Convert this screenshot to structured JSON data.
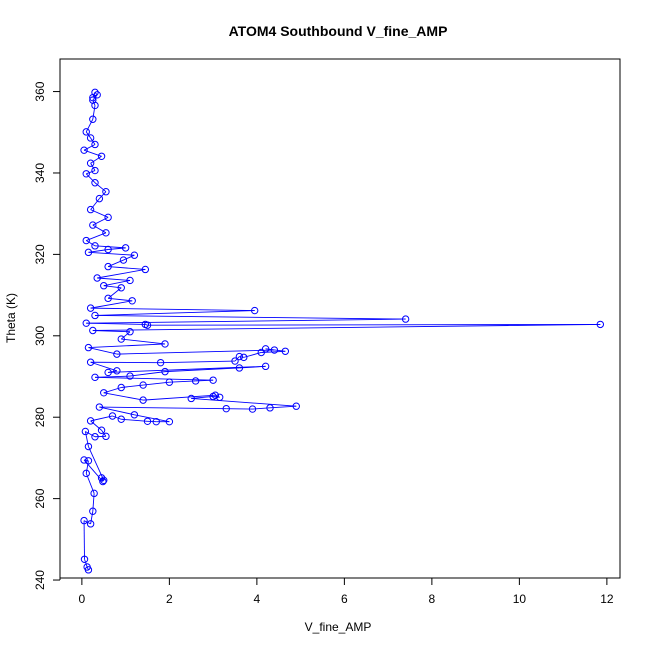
{
  "chart_data": {
    "type": "scatter",
    "title": "ATOM4 Southbound V_fine_AMP",
    "xlabel": "V_fine_AMP",
    "ylabel": "Theta (K)",
    "xlim": [
      -0.5,
      12.3
    ],
    "ylim": [
      240.5,
      368
    ],
    "x_ticks": [
      0,
      2,
      4,
      6,
      8,
      10,
      12
    ],
    "y_ticks": [
      240,
      260,
      280,
      300,
      320,
      340,
      360
    ],
    "marker": "open-circle",
    "connected": true,
    "series_color": "#0000ff",
    "grid": false,
    "legend": "none",
    "series": [
      {
        "points": [
          [
            0.15,
            242.5
          ],
          [
            0.12,
            243.2
          ],
          [
            0.06,
            245.1
          ],
          [
            0.05,
            254.6
          ],
          [
            0.2,
            253.8
          ],
          [
            0.25,
            256.9
          ],
          [
            0.28,
            261.3
          ],
          [
            0.1,
            266.2
          ],
          [
            0.15,
            269.3
          ],
          [
            0.05,
            269.5
          ],
          [
            0.48,
            264.2
          ],
          [
            0.45,
            265.1
          ],
          [
            0.5,
            264.5
          ],
          [
            0.15,
            272.8
          ],
          [
            0.08,
            276.5
          ],
          [
            0.3,
            275.2
          ],
          [
            0.55,
            275.3
          ],
          [
            0.45,
            276.8
          ],
          [
            0.2,
            279.1
          ],
          [
            0.7,
            280.3
          ],
          [
            0.9,
            279.5
          ],
          [
            1.5,
            279.0
          ],
          [
            1.7,
            278.9
          ],
          [
            2.0,
            278.9
          ],
          [
            1.2,
            280.6
          ],
          [
            0.4,
            282.5
          ],
          [
            3.3,
            282.1
          ],
          [
            3.9,
            282.0
          ],
          [
            4.3,
            282.3
          ],
          [
            4.9,
            282.7
          ],
          [
            2.5,
            284.6
          ],
          [
            3.0,
            285.1
          ],
          [
            3.15,
            284.9
          ],
          [
            3.05,
            285.4
          ],
          [
            1.4,
            284.2
          ],
          [
            0.5,
            286.0
          ],
          [
            0.9,
            287.3
          ],
          [
            1.4,
            287.9
          ],
          [
            2.0,
            288.6
          ],
          [
            2.6,
            288.9
          ],
          [
            3.0,
            289.1
          ],
          [
            0.3,
            289.8
          ],
          [
            1.1,
            290.1
          ],
          [
            1.9,
            291.2
          ],
          [
            3.6,
            292.1
          ],
          [
            4.2,
            292.5
          ],
          [
            0.6,
            291.0
          ],
          [
            0.8,
            291.4
          ],
          [
            0.2,
            293.5
          ],
          [
            1.8,
            293.4
          ],
          [
            3.5,
            293.8
          ],
          [
            3.6,
            294.9
          ],
          [
            3.7,
            294.7
          ],
          [
            4.1,
            295.9
          ],
          [
            4.65,
            296.2
          ],
          [
            4.2,
            296.8
          ],
          [
            4.4,
            296.5
          ],
          [
            0.8,
            295.5
          ],
          [
            0.15,
            297.1
          ],
          [
            1.9,
            298.0
          ],
          [
            0.9,
            299.2
          ],
          [
            1.1,
            301.0
          ],
          [
            0.25,
            301.3
          ],
          [
            11.85,
            302.8
          ],
          [
            1.5,
            302.6
          ],
          [
            1.45,
            302.8
          ],
          [
            0.1,
            303.1
          ],
          [
            7.4,
            304.1
          ],
          [
            0.3,
            305.0
          ],
          [
            3.95,
            306.2
          ],
          [
            0.2,
            306.8
          ],
          [
            1.15,
            308.6
          ],
          [
            0.6,
            309.2
          ],
          [
            0.9,
            311.8
          ],
          [
            0.5,
            312.3
          ],
          [
            1.1,
            313.6
          ],
          [
            0.35,
            314.2
          ],
          [
            1.45,
            316.3
          ],
          [
            0.6,
            317.0
          ],
          [
            0.95,
            318.6
          ],
          [
            1.2,
            319.8
          ],
          [
            0.15,
            320.5
          ],
          [
            0.6,
            321.2
          ],
          [
            1.0,
            321.6
          ],
          [
            0.3,
            322.1
          ],
          [
            0.1,
            323.4
          ],
          [
            0.55,
            325.3
          ],
          [
            0.25,
            327.2
          ],
          [
            0.6,
            329.1
          ],
          [
            0.2,
            331.0
          ],
          [
            0.4,
            333.7
          ],
          [
            0.55,
            335.4
          ],
          [
            0.3,
            337.6
          ],
          [
            0.1,
            339.8
          ],
          [
            0.3,
            340.6
          ],
          [
            0.2,
            342.4
          ],
          [
            0.45,
            344.1
          ],
          [
            0.05,
            345.6
          ],
          [
            0.3,
            347.0
          ],
          [
            0.2,
            348.6
          ],
          [
            0.1,
            350.1
          ],
          [
            0.25,
            353.2
          ],
          [
            0.3,
            356.6
          ],
          [
            0.25,
            357.9
          ],
          [
            0.35,
            359.2
          ],
          [
            0.3,
            359.8
          ],
          [
            0.25,
            358.5
          ]
        ]
      }
    ]
  }
}
